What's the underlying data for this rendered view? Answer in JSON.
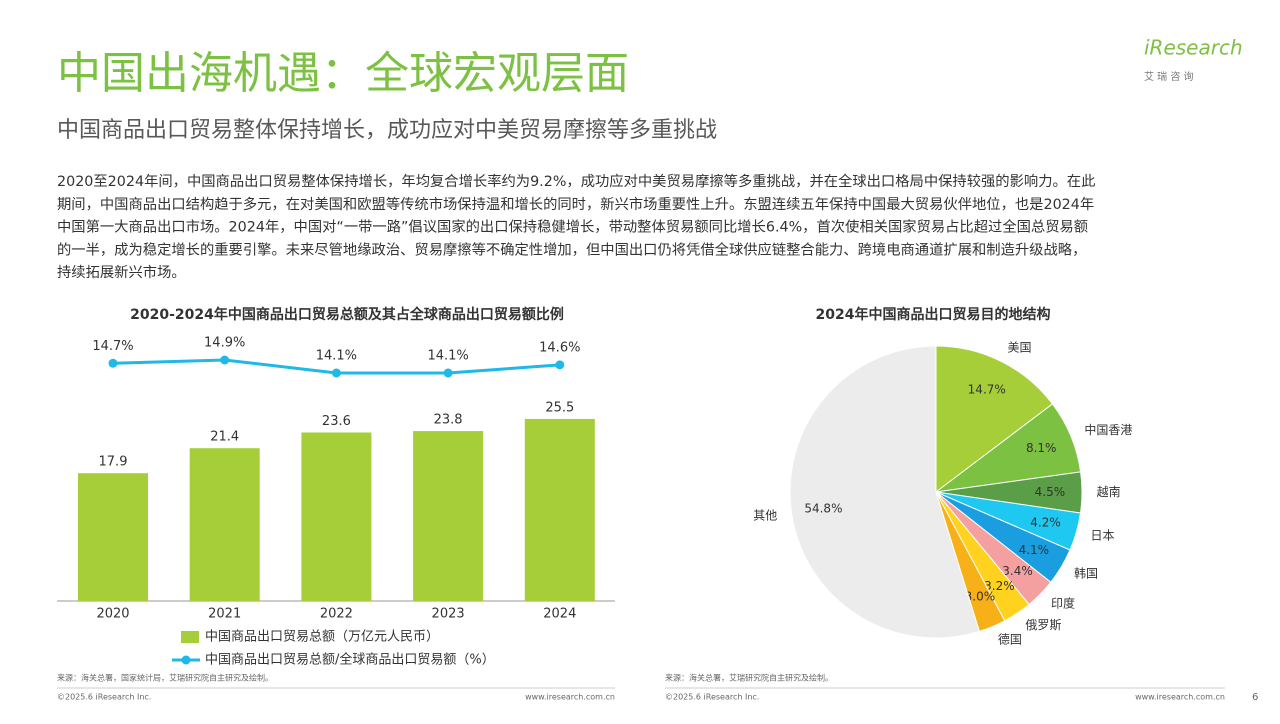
{
  "header": {
    "title": "中国出海机遇：全球宏观层面",
    "subtitle": "中国商品出口贸易整体保持增长，成功应对中美贸易摩擦等多重挑战",
    "logo": "iResearch",
    "logo_cn": "艾 瑞 咨 询"
  },
  "body": [
    "2020至2024年间，中国商品出口贸易整体保持增长，年均复合增长率约为9.2%，成功应对中美贸易摩擦等多重挑战，并在全球出口格局中保持较强的影响力。在此",
    "期间，中国商品出口结构趋于多元，在对美国和欧盟等传统市场保持温和增长的同时，新兴市场重要性上升。东盟连续五年保持中国最大贸易伙伴地位，也是2024年",
    "中国第一大商品出口市场。2024年，中国对“一带一路”倡议国家的出口保持稳健增长，带动整体贸易额同比增长6.4%，首次使相关国家贸易占比超过全国总贸易额",
    "的一半，成为稳定增长的重要引擎。未来尽管地缘政治、贸易摩擦等不确定性增加，但中国出口仍将凭借全球供应链整合能力、跨境电商通道扩展和制造升级战略，",
    "持续拓展新兴市场。"
  ],
  "chart_data": [
    {
      "type": "bar-line",
      "title": "2020-2024年中国商品出口贸易总额及其占全球商品出口贸易额比例",
      "categories": [
        "2020",
        "2021",
        "2022",
        "2023",
        "2024"
      ],
      "series": [
        {
          "name": "中国商品出口贸易总额（万亿元人民币）",
          "color": "#a6ce39",
          "values": [
            17.9,
            21.4,
            23.6,
            23.8,
            25.5
          ]
        },
        {
          "name": "中国商品出口贸易总额/全球商品出口贸易额（%）",
          "color": "#1fb8e8",
          "axis": "y2",
          "values": [
            14.7,
            14.9,
            14.1,
            14.1,
            14.6
          ],
          "value_labels": [
            "14.7%",
            "14.9%",
            "14.1%",
            "14.1%",
            "14.6%"
          ]
        }
      ],
      "source": "来源：海关总署，国家统计局，艾瑞研究院自主研究及绘制。"
    },
    {
      "type": "pie",
      "title": "2024年中国商品出口贸易目的地结构",
      "categories": [
        "美国",
        "中国香港",
        "越南",
        "日本",
        "韩国",
        "印度",
        "俄罗斯",
        "德国",
        "其他"
      ],
      "values": [
        14.7,
        8.1,
        4.5,
        4.2,
        4.1,
        3.4,
        3.2,
        3.0,
        54.8
      ],
      "value_labels": [
        "14.7%",
        "8.1%",
        "4.5%",
        "4.2%",
        "4.1%",
        "3.4%",
        "3.2%",
        "3.0%",
        "54.8%"
      ],
      "colors": [
        "#a6ce39",
        "#7cc142",
        "#5a9e47",
        "#1ec8f0",
        "#1a9ee0",
        "#f4a0a0",
        "#ffd21f",
        "#f8b018",
        "#ececec"
      ],
      "source": "来源：海关总署，艾瑞研究院自主研究及绘制。"
    }
  ],
  "footer": {
    "copyright": "©2025.6 iResearch Inc.",
    "url": "www.iresearch.com.cn",
    "page": "6"
  }
}
